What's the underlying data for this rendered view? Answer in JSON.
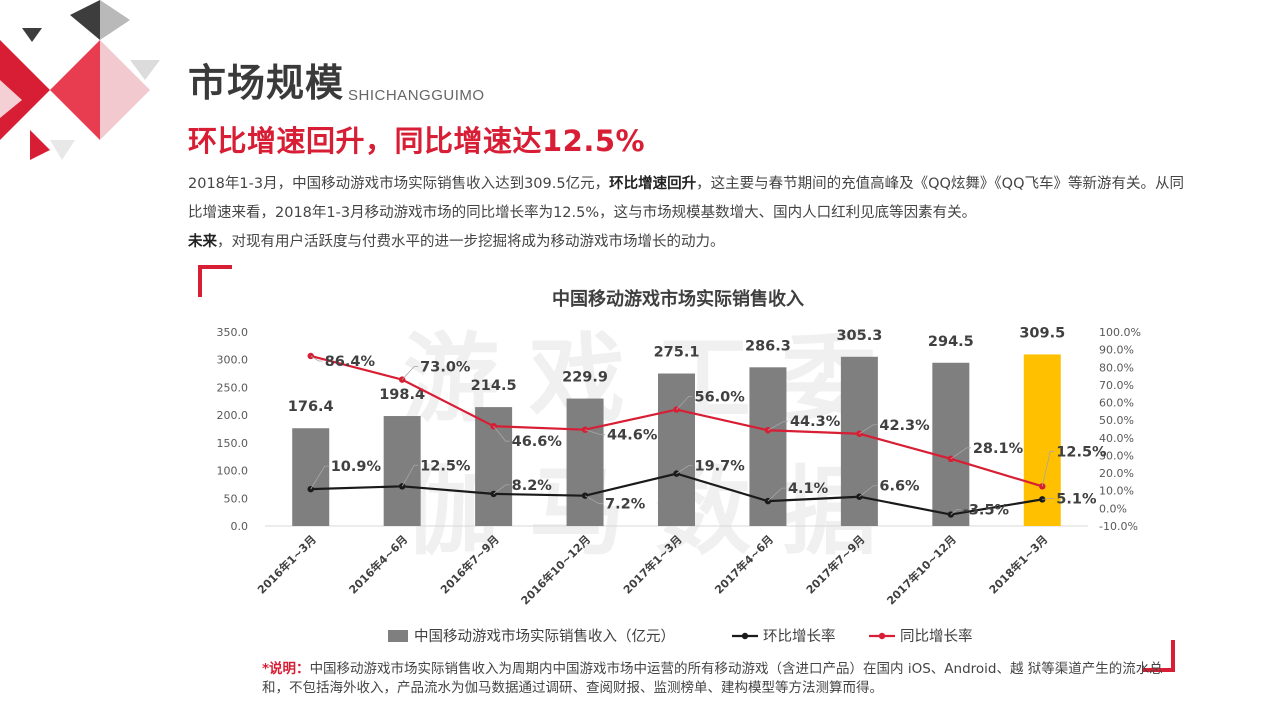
{
  "header": {
    "title": "市场规模",
    "title_en": "SHICHANGGUIMO",
    "subtitle": "环比增速回升，同比增速达12.5%"
  },
  "description": {
    "p1_a": "2018年1-3月，中国移动游戏市场实际销售收入达到309.5亿元，",
    "p1_bold": "环比增速回升",
    "p1_b": "，这主要与春节期间的充值高峰及《QQ炫舞》《QQ飞车》等新游有关。从同比增速来看，2018年1-3月移动游戏市场的同比增长率为12.5%，这与市场规模基数增大、国内人口红利见底等因素有关。",
    "p2_bold": "未来",
    "p2_a": "，对现有用户活跃度与付费水平的进一步挖掘将成为移动游戏市场增长的动力。"
  },
  "watermark": "游戏工委 伽马数据",
  "note": {
    "label": "*说明：",
    "text": "中国移动游戏市场实际销售收入为周期内中国游戏市场中运营的所有移动游戏（含进口产品）在国内 iOS、Android、越 狱等渠道产生的流水总和，不包括海外收入，产品流水为伽马数据通过调研、查阅财报、监测榜单、建构模型等方法测算而得。"
  },
  "colors": {
    "accent": "#d81e34",
    "bar": "#7f7f7f",
    "bar_highlight": "#ffc000",
    "qoq_line": "#1a1a1a",
    "yoy_line": "#d81e34"
  },
  "chart_data": {
    "type": "bar",
    "title": "中国移动游戏市场实际销售收入",
    "categories": [
      "2016年1~3月",
      "2016年4~6月",
      "2016年7~9月",
      "2016年10~12月",
      "2017年1~3月",
      "2017年4~6月",
      "2017年7~9月",
      "2017年10~12月",
      "2018年1~3月"
    ],
    "y_left": {
      "min": 0,
      "max": 350,
      "ticks": [
        "0.0",
        "50.0",
        "100.0",
        "150.0",
        "200.0",
        "250.0",
        "300.0",
        "350.0"
      ]
    },
    "y_right": {
      "min": -10,
      "max": 100,
      "ticks": [
        "-10.0%",
        "0.0%",
        "10.0%",
        "20.0%",
        "30.0%",
        "40.0%",
        "50.0%",
        "60.0%",
        "70.0%",
        "80.0%",
        "90.0%",
        "100.0%"
      ]
    },
    "series": [
      {
        "name": "中国移动游戏市场实际销售收入（亿元）",
        "type": "bar",
        "axis": "left",
        "values": [
          176.4,
          198.4,
          214.5,
          229.9,
          275.1,
          286.3,
          305.3,
          294.5,
          309.5
        ],
        "labels": [
          "176.4",
          "198.4",
          "214.5",
          "229.9",
          "275.1",
          "286.3",
          "305.3",
          "294.5",
          "309.5"
        ]
      },
      {
        "name": "环比增长率",
        "type": "line",
        "axis": "right",
        "values": [
          10.9,
          12.5,
          8.2,
          7.2,
          19.7,
          4.1,
          6.6,
          -3.5,
          5.1
        ],
        "labels": [
          "10.9%",
          "12.5%",
          "8.2%",
          "7.2%",
          "19.7%",
          "4.1%",
          "6.6%",
          "-3.5%",
          "5.1%"
        ]
      },
      {
        "name": "同比增长率",
        "type": "line",
        "axis": "right",
        "values": [
          86.4,
          73.0,
          46.6,
          44.6,
          56.0,
          44.3,
          42.3,
          28.1,
          12.5
        ],
        "labels": [
          "86.4%",
          "73.0%",
          "46.6%",
          "44.6%",
          "56.0%",
          "44.3%",
          "42.3%",
          "28.1%",
          "12.5%"
        ]
      }
    ],
    "legend_position": "bottom",
    "grid": false
  }
}
